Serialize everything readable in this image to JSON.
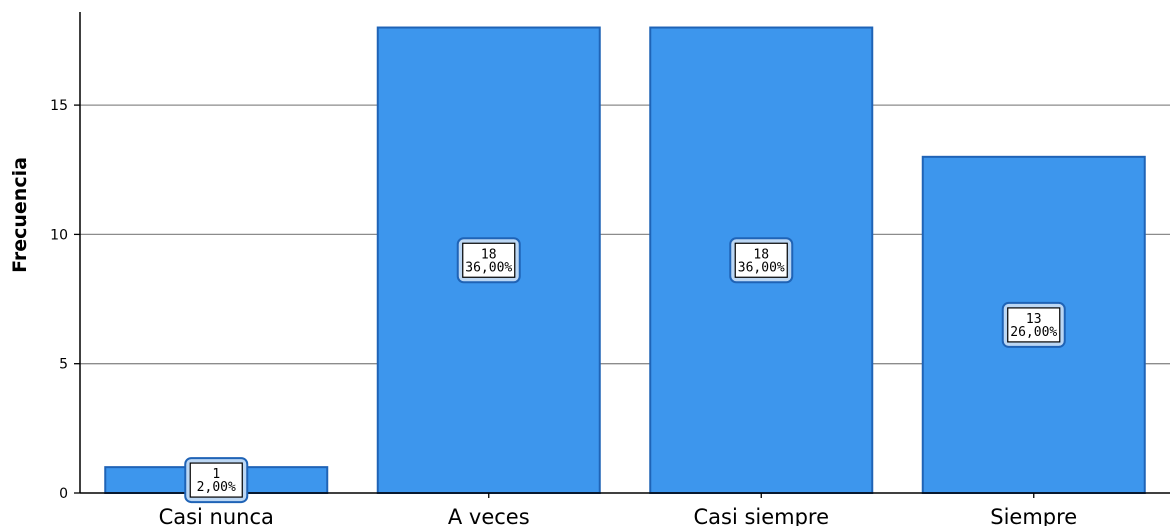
{
  "chart_data": {
    "type": "bar",
    "title": "",
    "xlabel": "",
    "ylabel": "Frecuencia",
    "categories": [
      "Casi nunca",
      "A veces",
      "Casi siempre",
      "Siempre"
    ],
    "values": [
      1,
      18,
      18,
      13
    ],
    "data_labels": [
      {
        "count": "1",
        "percent": "2,00%"
      },
      {
        "count": "18",
        "percent": "36,00%"
      },
      {
        "count": "18",
        "percent": "36,00%"
      },
      {
        "count": "13",
        "percent": "26,00%"
      }
    ],
    "yticks": [
      0,
      5,
      10,
      15
    ],
    "ylim": [
      0,
      18.6
    ],
    "grid": true,
    "legend": "none",
    "colors": {
      "bar_fill": "#3d96ed",
      "bar_stroke": "#1f63b6",
      "grid": "#8c8c8c",
      "axis": "#000000",
      "label_border": "#1f63b6"
    }
  }
}
